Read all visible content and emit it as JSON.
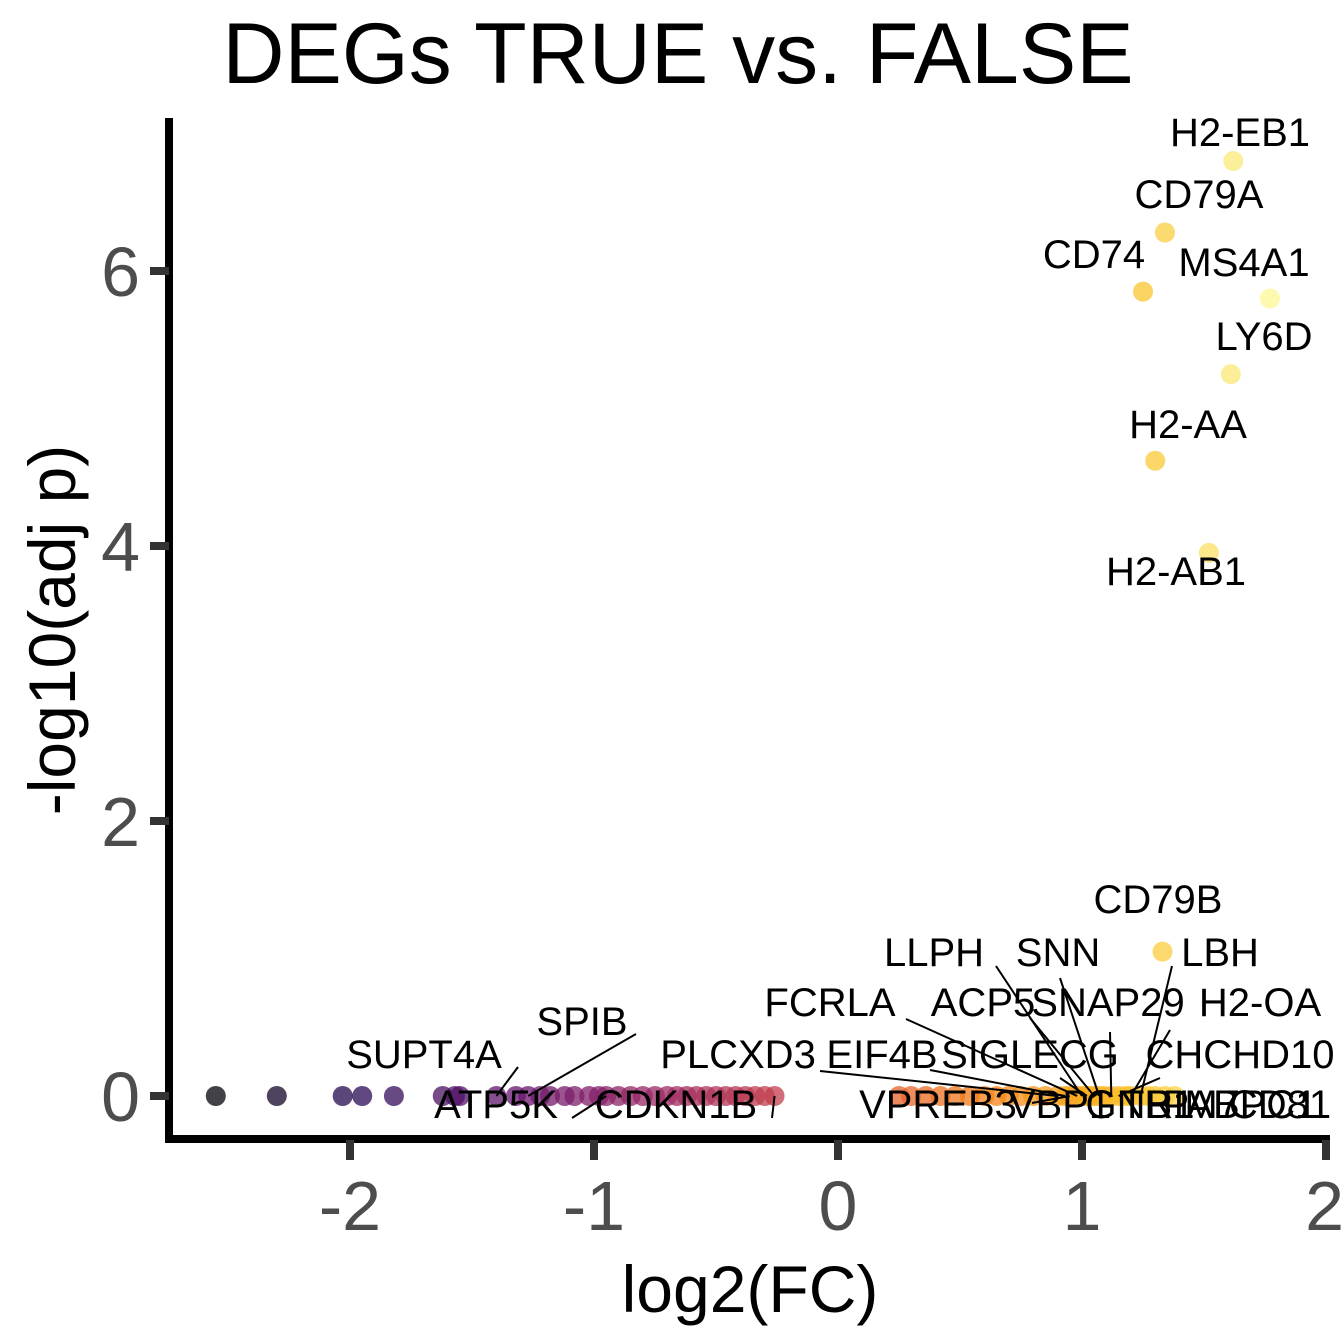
{
  "chart_data": {
    "type": "scatter",
    "title": "DEGs TRUE vs. FALSE",
    "xlabel": "log2(FC)",
    "ylabel": "-log10(adj p)",
    "xlim": [
      -2.7,
      2.0
    ],
    "ylim": [
      -0.3,
      7.1
    ],
    "x_ticks": [
      -2,
      -1,
      0,
      1,
      2
    ],
    "y_ticks": [
      0,
      2,
      4,
      6
    ],
    "grid": false,
    "legend": "none",
    "color_scale": "inferno (by log2FC)",
    "points": [
      {
        "x": -2.55,
        "y": 0.0
      },
      {
        "x": -2.3,
        "y": 0.0
      },
      {
        "x": -2.03,
        "y": 0.0
      },
      {
        "x": -1.95,
        "y": 0.0
      },
      {
        "x": -1.82,
        "y": 0.0
      },
      {
        "x": -1.62,
        "y": 0.0
      },
      {
        "x": -1.57,
        "y": 0.0
      },
      {
        "x": -1.55,
        "y": 0.0
      },
      {
        "x": -1.4,
        "y": 0.0,
        "label": "SUPT4A"
      },
      {
        "x": -1.32,
        "y": 0.0
      },
      {
        "x": -1.27,
        "y": 0.0,
        "label": "SPIB"
      },
      {
        "x": -1.22,
        "y": 0.0
      },
      {
        "x": -1.18,
        "y": 0.0
      },
      {
        "x": -1.12,
        "y": 0.0
      },
      {
        "x": -1.08,
        "y": 0.0
      },
      {
        "x": -1.02,
        "y": 0.0
      },
      {
        "x": -0.98,
        "y": 0.0
      },
      {
        "x": -0.95,
        "y": 0.0,
        "label": "ATP5K"
      },
      {
        "x": -0.9,
        "y": 0.0
      },
      {
        "x": -0.85,
        "y": 0.0
      },
      {
        "x": -0.8,
        "y": 0.0
      },
      {
        "x": -0.75,
        "y": 0.0
      },
      {
        "x": -0.7,
        "y": 0.0
      },
      {
        "x": -0.66,
        "y": 0.0
      },
      {
        "x": -0.62,
        "y": 0.0
      },
      {
        "x": -0.58,
        "y": 0.0
      },
      {
        "x": -0.54,
        "y": 0.0
      },
      {
        "x": -0.5,
        "y": 0.0
      },
      {
        "x": -0.46,
        "y": 0.0
      },
      {
        "x": -0.42,
        "y": 0.0
      },
      {
        "x": -0.38,
        "y": 0.0
      },
      {
        "x": -0.34,
        "y": 0.0
      },
      {
        "x": -0.3,
        "y": 0.0
      },
      {
        "x": -0.26,
        "y": 0.0,
        "label": "CDKN1B"
      },
      {
        "x": 0.25,
        "y": 0.0
      },
      {
        "x": 0.3,
        "y": 0.0
      },
      {
        "x": 0.36,
        "y": 0.0
      },
      {
        "x": 0.42,
        "y": 0.0
      },
      {
        "x": 0.48,
        "y": 0.0
      },
      {
        "x": 0.54,
        "y": 0.0
      },
      {
        "x": 0.6,
        "y": 0.0
      },
      {
        "x": 0.65,
        "y": 0.0
      },
      {
        "x": 0.7,
        "y": 0.0
      },
      {
        "x": 0.75,
        "y": 0.0
      },
      {
        "x": 0.8,
        "y": 0.0
      },
      {
        "x": 0.85,
        "y": 0.0
      },
      {
        "x": 0.9,
        "y": 0.0,
        "label": "PLCXD3"
      },
      {
        "x": 0.93,
        "y": 0.0,
        "label": "EIF4B"
      },
      {
        "x": 0.95,
        "y": 0.0,
        "label": "VPREB3"
      },
      {
        "x": 0.98,
        "y": 0.0,
        "label": "FCRLA"
      },
      {
        "x": 1.0,
        "y": 0.0,
        "label": "LLPH"
      },
      {
        "x": 1.02,
        "y": 0.0,
        "label": "SIGLECG"
      },
      {
        "x": 1.03,
        "y": 0.0,
        "label": "VBP1"
      },
      {
        "x": 1.05,
        "y": 0.0,
        "label": "ACP5"
      },
      {
        "x": 1.07,
        "y": 0.0,
        "label": "SNN"
      },
      {
        "x": 1.09,
        "y": 0.0,
        "label": "GNB1"
      },
      {
        "x": 1.12,
        "y": 0.0,
        "label": "SNAP29"
      },
      {
        "x": 1.15,
        "y": 0.0,
        "label": "CHCHD10"
      },
      {
        "x": 1.18,
        "y": 0.0,
        "label": "TRIM7"
      },
      {
        "x": 1.2,
        "y": 0.0,
        "label": "H2-OA"
      },
      {
        "x": 1.24,
        "y": 0.0,
        "label": "LBH"
      },
      {
        "x": 1.27,
        "y": 0.0,
        "label": "PABPC1"
      },
      {
        "x": 1.3,
        "y": 0.0,
        "label": "CD81"
      },
      {
        "x": 1.34,
        "y": 0.0
      },
      {
        "x": 1.38,
        "y": 0.0
      },
      {
        "x": 1.33,
        "y": 1.05,
        "label": "CD79B"
      },
      {
        "x": 1.52,
        "y": 3.95,
        "label": "H2-AB1"
      },
      {
        "x": 1.3,
        "y": 4.62,
        "label": "H2-AA"
      },
      {
        "x": 1.61,
        "y": 5.25,
        "label": "LY6D"
      },
      {
        "x": 1.77,
        "y": 5.8,
        "label": "MS4A1"
      },
      {
        "x": 1.25,
        "y": 5.85,
        "label": "CD74"
      },
      {
        "x": 1.34,
        "y": 6.28,
        "label": "CD79A"
      },
      {
        "x": 1.62,
        "y": 6.8,
        "label": "H2-EB1"
      }
    ]
  }
}
